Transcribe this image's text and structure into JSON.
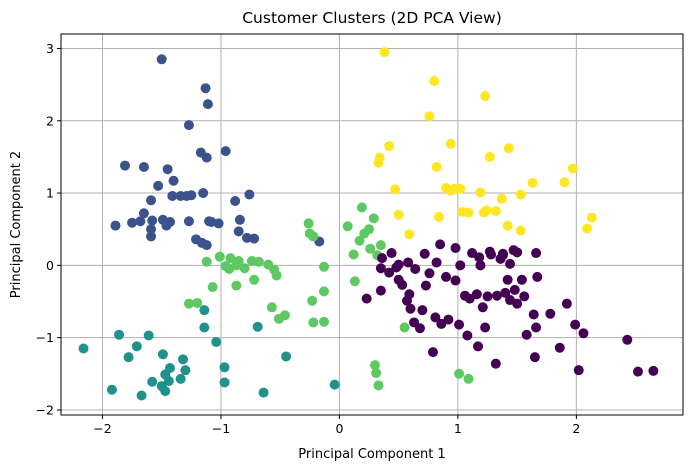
{
  "chart_data": {
    "type": "scatter",
    "title": "Customer Clusters (2D PCA View)",
    "xlabel": "Principal Component 1",
    "ylabel": "Principal Component 2",
    "xlim": [
      -2.35,
      2.9
    ],
    "ylim": [
      -2.07,
      3.2
    ],
    "xticks": [
      -2,
      -1,
      0,
      1,
      2
    ],
    "yticks": [
      -2,
      -1,
      0,
      1,
      2,
      3
    ],
    "grid": true,
    "series": [
      {
        "color": "#3b528b",
        "points": [
          [
            -1.5,
            2.85
          ],
          [
            -1.13,
            2.45
          ],
          [
            -1.11,
            2.23
          ],
          [
            -1.27,
            1.94
          ],
          [
            -1.17,
            1.56
          ],
          [
            -1.12,
            1.49
          ],
          [
            -0.96,
            1.58
          ],
          [
            -1.81,
            1.38
          ],
          [
            -1.65,
            1.36
          ],
          [
            -1.45,
            1.33
          ],
          [
            -1.53,
            1.1
          ],
          [
            -1.4,
            1.17
          ],
          [
            -1.34,
            0.96
          ],
          [
            -1.29,
            0.96
          ],
          [
            -1.41,
            0.96
          ],
          [
            -1.59,
            0.9
          ],
          [
            -1.58,
            0.62
          ],
          [
            -1.68,
            0.61
          ],
          [
            -1.65,
            0.72
          ],
          [
            -1.49,
            0.63
          ],
          [
            -1.43,
            0.6
          ],
          [
            -1.46,
            0.55
          ],
          [
            -1.27,
            0.61
          ],
          [
            -1.25,
            0.97
          ],
          [
            -1.15,
            1.0
          ],
          [
            -1.1,
            0.61
          ],
          [
            -1.08,
            0.6
          ],
          [
            -1.02,
            0.58
          ],
          [
            -0.88,
            0.89
          ],
          [
            -0.76,
            0.98
          ],
          [
            -0.84,
            0.63
          ],
          [
            -0.85,
            0.47
          ],
          [
            -0.78,
            0.38
          ],
          [
            -0.72,
            0.37
          ],
          [
            -1.16,
            0.31
          ],
          [
            -1.12,
            0.28
          ],
          [
            -1.21,
            0.36
          ],
          [
            -1.59,
            0.4
          ],
          [
            -1.59,
            0.5
          ],
          [
            -1.89,
            0.55
          ],
          [
            -1.75,
            0.59
          ],
          [
            -0.17,
            0.33
          ]
        ]
      },
      {
        "color": "#21918c",
        "points": [
          [
            -2.16,
            -1.15
          ],
          [
            -1.92,
            -1.72
          ],
          [
            -1.86,
            -0.96
          ],
          [
            -1.78,
            -1.27
          ],
          [
            -1.71,
            -1.12
          ],
          [
            -1.67,
            -1.8
          ],
          [
            -1.61,
            -0.97
          ],
          [
            -1.58,
            -1.61
          ],
          [
            -1.49,
            -1.23
          ],
          [
            -1.5,
            -1.67
          ],
          [
            -1.47,
            -1.74
          ],
          [
            -1.47,
            -1.51
          ],
          [
            -1.44,
            -1.6
          ],
          [
            -1.43,
            -1.42
          ],
          [
            -1.34,
            -1.57
          ],
          [
            -1.32,
            -1.3
          ],
          [
            -1.3,
            -1.45
          ],
          [
            -1.14,
            -0.86
          ],
          [
            -1.14,
            -0.62
          ],
          [
            -1.04,
            -1.06
          ],
          [
            -0.97,
            -1.62
          ],
          [
            -0.97,
            -1.41
          ],
          [
            -0.64,
            -1.76
          ],
          [
            -0.69,
            -0.85
          ],
          [
            -0.45,
            -1.26
          ],
          [
            -0.04,
            -1.65
          ]
        ]
      },
      {
        "color": "#5ec962",
        "points": [
          [
            -1.12,
            0.05
          ],
          [
            -1.01,
            0.12
          ],
          [
            -0.92,
            0.1
          ],
          [
            -0.96,
            -0.01
          ],
          [
            -0.93,
            -0.05
          ],
          [
            -0.85,
            0.06
          ],
          [
            -0.87,
            0.0
          ],
          [
            -0.8,
            -0.04
          ],
          [
            -0.74,
            0.06
          ],
          [
            -0.68,
            0.05
          ],
          [
            -0.6,
            0.01
          ],
          [
            -0.55,
            -0.06
          ],
          [
            -0.53,
            -0.14
          ],
          [
            -0.72,
            -0.2
          ],
          [
            -0.87,
            -0.28
          ],
          [
            -1.07,
            -0.3
          ],
          [
            -1.2,
            -0.52
          ],
          [
            -1.27,
            -0.53
          ],
          [
            -0.57,
            -0.58
          ],
          [
            -0.51,
            -0.74
          ],
          [
            -0.46,
            -0.69
          ],
          [
            -0.23,
            -0.49
          ],
          [
            -0.22,
            -0.79
          ],
          [
            -0.13,
            -0.78
          ],
          [
            -0.13,
            -0.36
          ],
          [
            -0.26,
            0.58
          ],
          [
            -0.25,
            0.44
          ],
          [
            -0.22,
            0.4
          ],
          [
            0.07,
            0.54
          ],
          [
            0.19,
            0.8
          ],
          [
            0.29,
            0.65
          ],
          [
            0.25,
            0.5
          ],
          [
            0.12,
            0.15
          ],
          [
            0.17,
            0.34
          ],
          [
            0.32,
            0.14
          ],
          [
            0.26,
            0.23
          ],
          [
            0.35,
            0.28
          ],
          [
            0.13,
            -0.22
          ],
          [
            -0.13,
            -0.02
          ],
          [
            0.55,
            -0.86
          ],
          [
            1.01,
            -1.5
          ],
          [
            1.09,
            -1.57
          ],
          [
            0.3,
            -1.38
          ],
          [
            0.31,
            -1.49
          ],
          [
            0.33,
            -1.66
          ],
          [
            0.21,
            0.44
          ]
        ]
      },
      {
        "color": "#440154",
        "points": [
          [
            0.85,
            0.29
          ],
          [
            0.98,
            0.24
          ],
          [
            1.12,
            0.17
          ],
          [
            1.18,
            0.11
          ],
          [
            1.28,
            0.15
          ],
          [
            1.38,
            0.14
          ],
          [
            1.38,
            0.16
          ],
          [
            1.5,
            0.18
          ],
          [
            1.66,
            0.17
          ],
          [
            1.47,
            0.21
          ],
          [
            1.27,
            0.19
          ],
          [
            1.36,
            0.09
          ],
          [
            1.44,
            0.02
          ],
          [
            1.54,
            -0.2
          ],
          [
            1.67,
            -0.16
          ],
          [
            1.4,
            -0.38
          ],
          [
            1.44,
            -0.48
          ],
          [
            1.56,
            -0.43
          ],
          [
            1.64,
            -0.68
          ],
          [
            1.66,
            -0.86
          ],
          [
            1.78,
            -0.67
          ],
          [
            1.92,
            -0.53
          ],
          [
            1.99,
            -0.82
          ],
          [
            2.06,
            -0.94
          ],
          [
            1.86,
            -1.14
          ],
          [
            1.65,
            -1.27
          ],
          [
            1.58,
            -0.96
          ],
          [
            2.02,
            -1.45
          ],
          [
            2.43,
            -1.03
          ],
          [
            2.52,
            -1.47
          ],
          [
            2.65,
            -1.46
          ],
          [
            1.32,
            -1.36
          ],
          [
            1.17,
            -1.12
          ],
          [
            1.08,
            -0.97
          ],
          [
            1.01,
            -0.82
          ],
          [
            0.92,
            -0.75
          ],
          [
            0.86,
            -0.81
          ],
          [
            0.81,
            -0.72
          ],
          [
            0.79,
            -1.2
          ],
          [
            0.7,
            -0.62
          ],
          [
            0.68,
            -0.87
          ],
          [
            0.63,
            -0.79
          ],
          [
            0.6,
            -0.6
          ],
          [
            0.59,
            -0.4
          ],
          [
            0.57,
            -0.49
          ],
          [
            0.53,
            -0.27
          ],
          [
            0.5,
            -0.2
          ],
          [
            0.5,
            0.01
          ],
          [
            0.48,
            -0.03
          ],
          [
            0.42,
            -0.1
          ],
          [
            0.44,
            0.17
          ],
          [
            0.36,
            0.1
          ],
          [
            0.35,
            -0.04
          ],
          [
            0.23,
            -0.46
          ],
          [
            0.35,
            -0.35
          ],
          [
            0.58,
            0.04
          ],
          [
            0.64,
            -0.05
          ],
          [
            0.73,
            -0.28
          ],
          [
            0.76,
            -0.11
          ],
          [
            0.82,
            0.04
          ],
          [
            0.9,
            -0.16
          ],
          [
            0.98,
            -0.21
          ],
          [
            1.06,
            -0.42
          ],
          [
            1.1,
            -0.46
          ],
          [
            1.16,
            -0.4
          ],
          [
            1.21,
            -0.58
          ],
          [
            1.25,
            -0.43
          ],
          [
            1.33,
            -0.42
          ],
          [
            1.42,
            -0.2
          ],
          [
            1.48,
            -0.34
          ],
          [
            1.5,
            -0.53
          ],
          [
            1.23,
            -0.86
          ],
          [
            1.02,
            0.0
          ],
          [
            0.72,
            0.16
          ],
          [
            1.19,
            0.0
          ]
        ]
      },
      {
        "color": "#fde725",
        "points": [
          [
            0.38,
            2.95
          ],
          [
            0.8,
            2.55
          ],
          [
            1.23,
            2.34
          ],
          [
            0.76,
            2.06
          ],
          [
            0.42,
            1.65
          ],
          [
            0.94,
            1.68
          ],
          [
            1.27,
            1.5
          ],
          [
            1.43,
            1.62
          ],
          [
            0.34,
            1.49
          ],
          [
            0.33,
            1.42
          ],
          [
            0.47,
            1.05
          ],
          [
            0.82,
            1.36
          ],
          [
            0.9,
            1.07
          ],
          [
            0.94,
            1.03
          ],
          [
            0.97,
            1.06
          ],
          [
            1.02,
            1.06
          ],
          [
            1.19,
            1.01
          ],
          [
            1.37,
            0.92
          ],
          [
            1.53,
            0.98
          ],
          [
            1.63,
            1.14
          ],
          [
            1.9,
            1.15
          ],
          [
            1.97,
            1.34
          ],
          [
            0.84,
            0.67
          ],
          [
            1.04,
            0.74
          ],
          [
            1.09,
            0.73
          ],
          [
            1.22,
            0.73
          ],
          [
            1.24,
            0.76
          ],
          [
            1.32,
            0.75
          ],
          [
            1.42,
            0.55
          ],
          [
            1.53,
            0.48
          ],
          [
            2.13,
            0.66
          ],
          [
            2.09,
            0.51
          ],
          [
            0.59,
            0.43
          ],
          [
            0.5,
            0.7
          ]
        ]
      }
    ]
  }
}
